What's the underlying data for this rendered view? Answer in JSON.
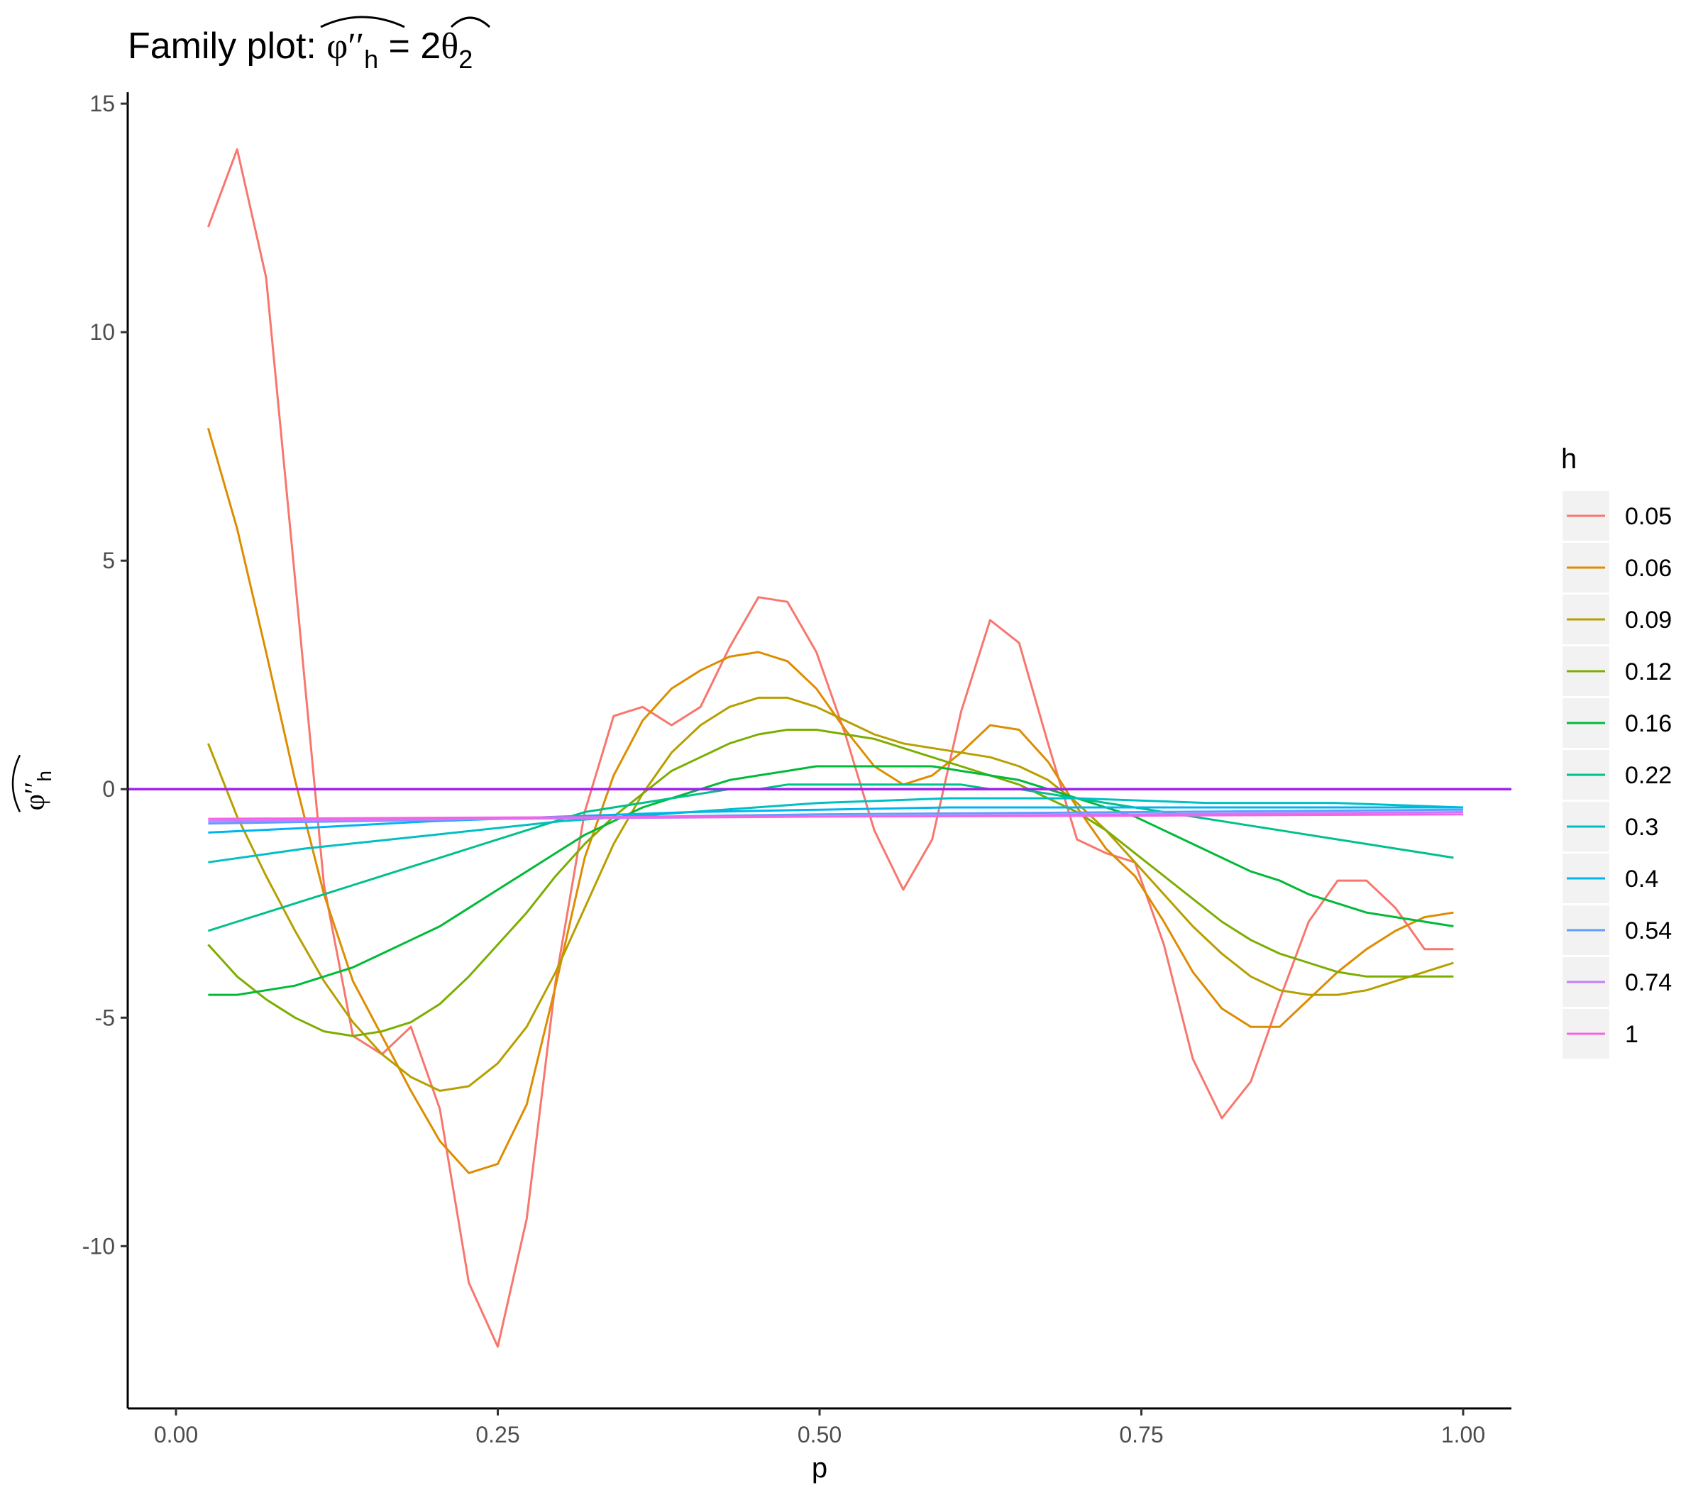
{
  "chart_data": {
    "type": "line",
    "title": {
      "prefix": "Family plot: ",
      "phi": "φ",
      "primes": "′′",
      "sub_h": "h",
      "equals": " = 2",
      "theta": "θ",
      "sub_2": "2"
    },
    "xlabel": "p",
    "ylabel": {
      "phi": "φ",
      "primes": "′′",
      "sub_h": "h"
    },
    "xlim": [
      -0.0375,
      1.0375
    ],
    "ylim": [
      -13.55,
      15.25
    ],
    "xticks": [
      0.0,
      0.25,
      0.5,
      0.75,
      1.0
    ],
    "xtick_labels": [
      "0.00",
      "0.25",
      "0.50",
      "0.75",
      "1.00"
    ],
    "yticks": [
      -10,
      -5,
      0,
      5,
      10,
      15
    ],
    "ytick_labels": [
      "-10",
      "-5",
      "0",
      "5",
      "10",
      "15"
    ],
    "grid": false,
    "legend": {
      "title": "h",
      "position": "right"
    },
    "reference_line": {
      "y": 0,
      "color": "#a020f0"
    },
    "series": [
      {
        "name": "0.05",
        "color": "#F8766D",
        "x": [
          0.025,
          0.0475,
          0.07,
          0.0925,
          0.115,
          0.1375,
          0.16,
          0.1825,
          0.205,
          0.2275,
          0.25,
          0.2725,
          0.295,
          0.3175,
          0.34,
          0.3625,
          0.385,
          0.4075,
          0.43,
          0.4525,
          0.475,
          0.4975,
          0.52,
          0.5425,
          0.565,
          0.5875,
          0.61,
          0.6325,
          0.655,
          0.6775,
          0.7,
          0.7225,
          0.745,
          0.7675,
          0.79,
          0.8125,
          0.835,
          0.8575,
          0.88,
          0.9025,
          0.925,
          0.9475,
          0.97,
          0.9925
        ],
        "y": [
          12.3,
          14.0,
          11.2,
          4.6,
          -2.1,
          -5.4,
          -5.8,
          -5.2,
          -7.0,
          -10.8,
          -12.2,
          -9.4,
          -4.2,
          -0.5,
          1.6,
          1.8,
          1.4,
          1.8,
          3.1,
          4.2,
          4.1,
          3.0,
          1.2,
          -0.9,
          -2.2,
          -1.1,
          1.7,
          3.7,
          3.2,
          1.0,
          -1.1,
          -1.4,
          -1.6,
          -3.4,
          -5.9,
          -7.2,
          -6.4,
          -4.6,
          -2.9,
          -2.0,
          -2.0,
          -2.6,
          -3.5,
          -3.5
        ]
      },
      {
        "name": "0.06",
        "color": "#DE8C00",
        "x": [
          0.025,
          0.0475,
          0.07,
          0.0925,
          0.115,
          0.1375,
          0.16,
          0.1825,
          0.205,
          0.2275,
          0.25,
          0.2725,
          0.295,
          0.3175,
          0.34,
          0.3625,
          0.385,
          0.4075,
          0.43,
          0.4525,
          0.475,
          0.4975,
          0.52,
          0.5425,
          0.565,
          0.5875,
          0.61,
          0.6325,
          0.655,
          0.6775,
          0.7,
          0.7225,
          0.745,
          0.7675,
          0.79,
          0.8125,
          0.835,
          0.8575,
          0.88,
          0.9025,
          0.925,
          0.9475,
          0.97,
          0.9925
        ],
        "y": [
          7.9,
          5.7,
          3.0,
          0.2,
          -2.3,
          -4.2,
          -5.4,
          -6.6,
          -7.7,
          -8.4,
          -8.2,
          -6.9,
          -4.3,
          -1.5,
          0.3,
          1.5,
          2.2,
          2.6,
          2.9,
          3.0,
          2.8,
          2.2,
          1.3,
          0.5,
          0.1,
          0.3,
          0.8,
          1.4,
          1.3,
          0.6,
          -0.4,
          -1.3,
          -1.9,
          -2.9,
          -4.0,
          -4.8,
          -5.2,
          -5.2,
          -4.6,
          -4.0,
          -3.5,
          -3.1,
          -2.8,
          -2.7
        ]
      },
      {
        "name": "0.09",
        "color": "#B79F00",
        "x": [
          0.025,
          0.0475,
          0.07,
          0.0925,
          0.115,
          0.1375,
          0.16,
          0.1825,
          0.205,
          0.2275,
          0.25,
          0.2725,
          0.295,
          0.3175,
          0.34,
          0.3625,
          0.385,
          0.4075,
          0.43,
          0.4525,
          0.475,
          0.4975,
          0.52,
          0.5425,
          0.565,
          0.5875,
          0.61,
          0.6325,
          0.655,
          0.6775,
          0.7,
          0.7225,
          0.745,
          0.7675,
          0.79,
          0.8125,
          0.835,
          0.8575,
          0.88,
          0.9025,
          0.925,
          0.9475,
          0.97,
          0.9925
        ],
        "y": [
          1.0,
          -0.6,
          -1.9,
          -3.1,
          -4.2,
          -5.1,
          -5.8,
          -6.3,
          -6.6,
          -6.5,
          -6.0,
          -5.2,
          -4.0,
          -2.6,
          -1.2,
          -0.1,
          0.8,
          1.4,
          1.8,
          2.0,
          2.0,
          1.8,
          1.5,
          1.2,
          1.0,
          0.9,
          0.8,
          0.7,
          0.5,
          0.2,
          -0.3,
          -0.9,
          -1.6,
          -2.3,
          -3.0,
          -3.6,
          -4.1,
          -4.4,
          -4.5,
          -4.5,
          -4.4,
          -4.2,
          -4.0,
          -3.8
        ]
      },
      {
        "name": "0.12",
        "color": "#7CAE00",
        "x": [
          0.025,
          0.0475,
          0.07,
          0.0925,
          0.115,
          0.1375,
          0.16,
          0.1825,
          0.205,
          0.2275,
          0.25,
          0.2725,
          0.295,
          0.3175,
          0.34,
          0.3625,
          0.385,
          0.4075,
          0.43,
          0.4525,
          0.475,
          0.4975,
          0.52,
          0.5425,
          0.565,
          0.5875,
          0.61,
          0.6325,
          0.655,
          0.6775,
          0.7,
          0.7225,
          0.745,
          0.7675,
          0.79,
          0.8125,
          0.835,
          0.8575,
          0.88,
          0.9025,
          0.925,
          0.9475,
          0.97,
          0.9925
        ],
        "y": [
          -3.4,
          -4.1,
          -4.6,
          -5.0,
          -5.3,
          -5.4,
          -5.3,
          -5.1,
          -4.7,
          -4.1,
          -3.4,
          -2.7,
          -1.9,
          -1.2,
          -0.6,
          -0.1,
          0.4,
          0.7,
          1.0,
          1.2,
          1.3,
          1.3,
          1.2,
          1.1,
          0.9,
          0.7,
          0.5,
          0.3,
          0.1,
          -0.2,
          -0.5,
          -0.9,
          -1.4,
          -1.9,
          -2.4,
          -2.9,
          -3.3,
          -3.6,
          -3.8,
          -4.0,
          -4.1,
          -4.1,
          -4.1,
          -4.1
        ]
      },
      {
        "name": "0.16",
        "color": "#00BA38",
        "x": [
          0.025,
          0.0475,
          0.07,
          0.0925,
          0.115,
          0.1375,
          0.16,
          0.1825,
          0.205,
          0.2275,
          0.25,
          0.2725,
          0.295,
          0.3175,
          0.34,
          0.3625,
          0.385,
          0.4075,
          0.43,
          0.4525,
          0.475,
          0.4975,
          0.52,
          0.5425,
          0.565,
          0.5875,
          0.61,
          0.6325,
          0.655,
          0.6775,
          0.7,
          0.7225,
          0.745,
          0.7675,
          0.79,
          0.8125,
          0.835,
          0.8575,
          0.88,
          0.9025,
          0.925,
          0.9475,
          0.97,
          0.9925
        ],
        "y": [
          -4.5,
          -4.5,
          -4.4,
          -4.3,
          -4.1,
          -3.9,
          -3.6,
          -3.3,
          -3.0,
          -2.6,
          -2.2,
          -1.8,
          -1.4,
          -1.0,
          -0.7,
          -0.4,
          -0.2,
          0.0,
          0.2,
          0.3,
          0.4,
          0.5,
          0.5,
          0.5,
          0.5,
          0.5,
          0.4,
          0.3,
          0.2,
          0.0,
          -0.2,
          -0.4,
          -0.6,
          -0.9,
          -1.2,
          -1.5,
          -1.8,
          -2.0,
          -2.3,
          -2.5,
          -2.7,
          -2.8,
          -2.9,
          -3.0
        ]
      },
      {
        "name": "0.22",
        "color": "#00C08B",
        "x": [
          0.025,
          0.0475,
          0.07,
          0.0925,
          0.115,
          0.1375,
          0.16,
          0.1825,
          0.205,
          0.2275,
          0.25,
          0.2725,
          0.295,
          0.3175,
          0.34,
          0.3625,
          0.385,
          0.4075,
          0.43,
          0.4525,
          0.475,
          0.4975,
          0.52,
          0.5425,
          0.565,
          0.5875,
          0.61,
          0.6325,
          0.655,
          0.6775,
          0.7,
          0.7225,
          0.745,
          0.7675,
          0.79,
          0.8125,
          0.835,
          0.8575,
          0.88,
          0.9025,
          0.925,
          0.9475,
          0.97,
          0.9925
        ],
        "y": [
          -3.1,
          -2.9,
          -2.7,
          -2.5,
          -2.3,
          -2.1,
          -1.9,
          -1.7,
          -1.5,
          -1.3,
          -1.1,
          -0.9,
          -0.7,
          -0.5,
          -0.4,
          -0.3,
          -0.2,
          -0.1,
          0.0,
          0.0,
          0.1,
          0.1,
          0.1,
          0.1,
          0.1,
          0.1,
          0.1,
          0.0,
          0.0,
          -0.1,
          -0.2,
          -0.3,
          -0.4,
          -0.5,
          -0.6,
          -0.7,
          -0.8,
          -0.9,
          -1.0,
          -1.1,
          -1.2,
          -1.3,
          -1.4,
          -1.5
        ]
      },
      {
        "name": "0.3",
        "color": "#00BFC4",
        "x": [
          0.025,
          0.1,
          0.2,
          0.3,
          0.4,
          0.5,
          0.6,
          0.7,
          0.8,
          0.9,
          1.0
        ],
        "y": [
          -1.6,
          -1.3,
          -1.0,
          -0.7,
          -0.5,
          -0.3,
          -0.2,
          -0.2,
          -0.3,
          -0.3,
          -0.4
        ]
      },
      {
        "name": "0.4",
        "color": "#00B4F0",
        "x": [
          0.025,
          0.1,
          0.2,
          0.3,
          0.4,
          0.5,
          0.6,
          0.7,
          0.8,
          0.9,
          1.0
        ],
        "y": [
          -0.95,
          -0.85,
          -0.7,
          -0.6,
          -0.5,
          -0.45,
          -0.4,
          -0.4,
          -0.4,
          -0.4,
          -0.4
        ]
      },
      {
        "name": "0.54",
        "color": "#619CFF",
        "x": [
          0.025,
          0.25,
          0.5,
          0.75,
          1.0
        ],
        "y": [
          -0.75,
          -0.65,
          -0.55,
          -0.5,
          -0.45
        ]
      },
      {
        "name": "0.74",
        "color": "#C77CFF",
        "x": [
          0.025,
          0.25,
          0.5,
          0.75,
          1.0
        ],
        "y": [
          -0.7,
          -0.65,
          -0.6,
          -0.55,
          -0.5
        ]
      },
      {
        "name": "1",
        "color": "#F564E3",
        "x": [
          0.025,
          0.25,
          0.5,
          0.75,
          1.0
        ],
        "y": [
          -0.65,
          -0.62,
          -0.6,
          -0.58,
          -0.55
        ]
      }
    ]
  }
}
